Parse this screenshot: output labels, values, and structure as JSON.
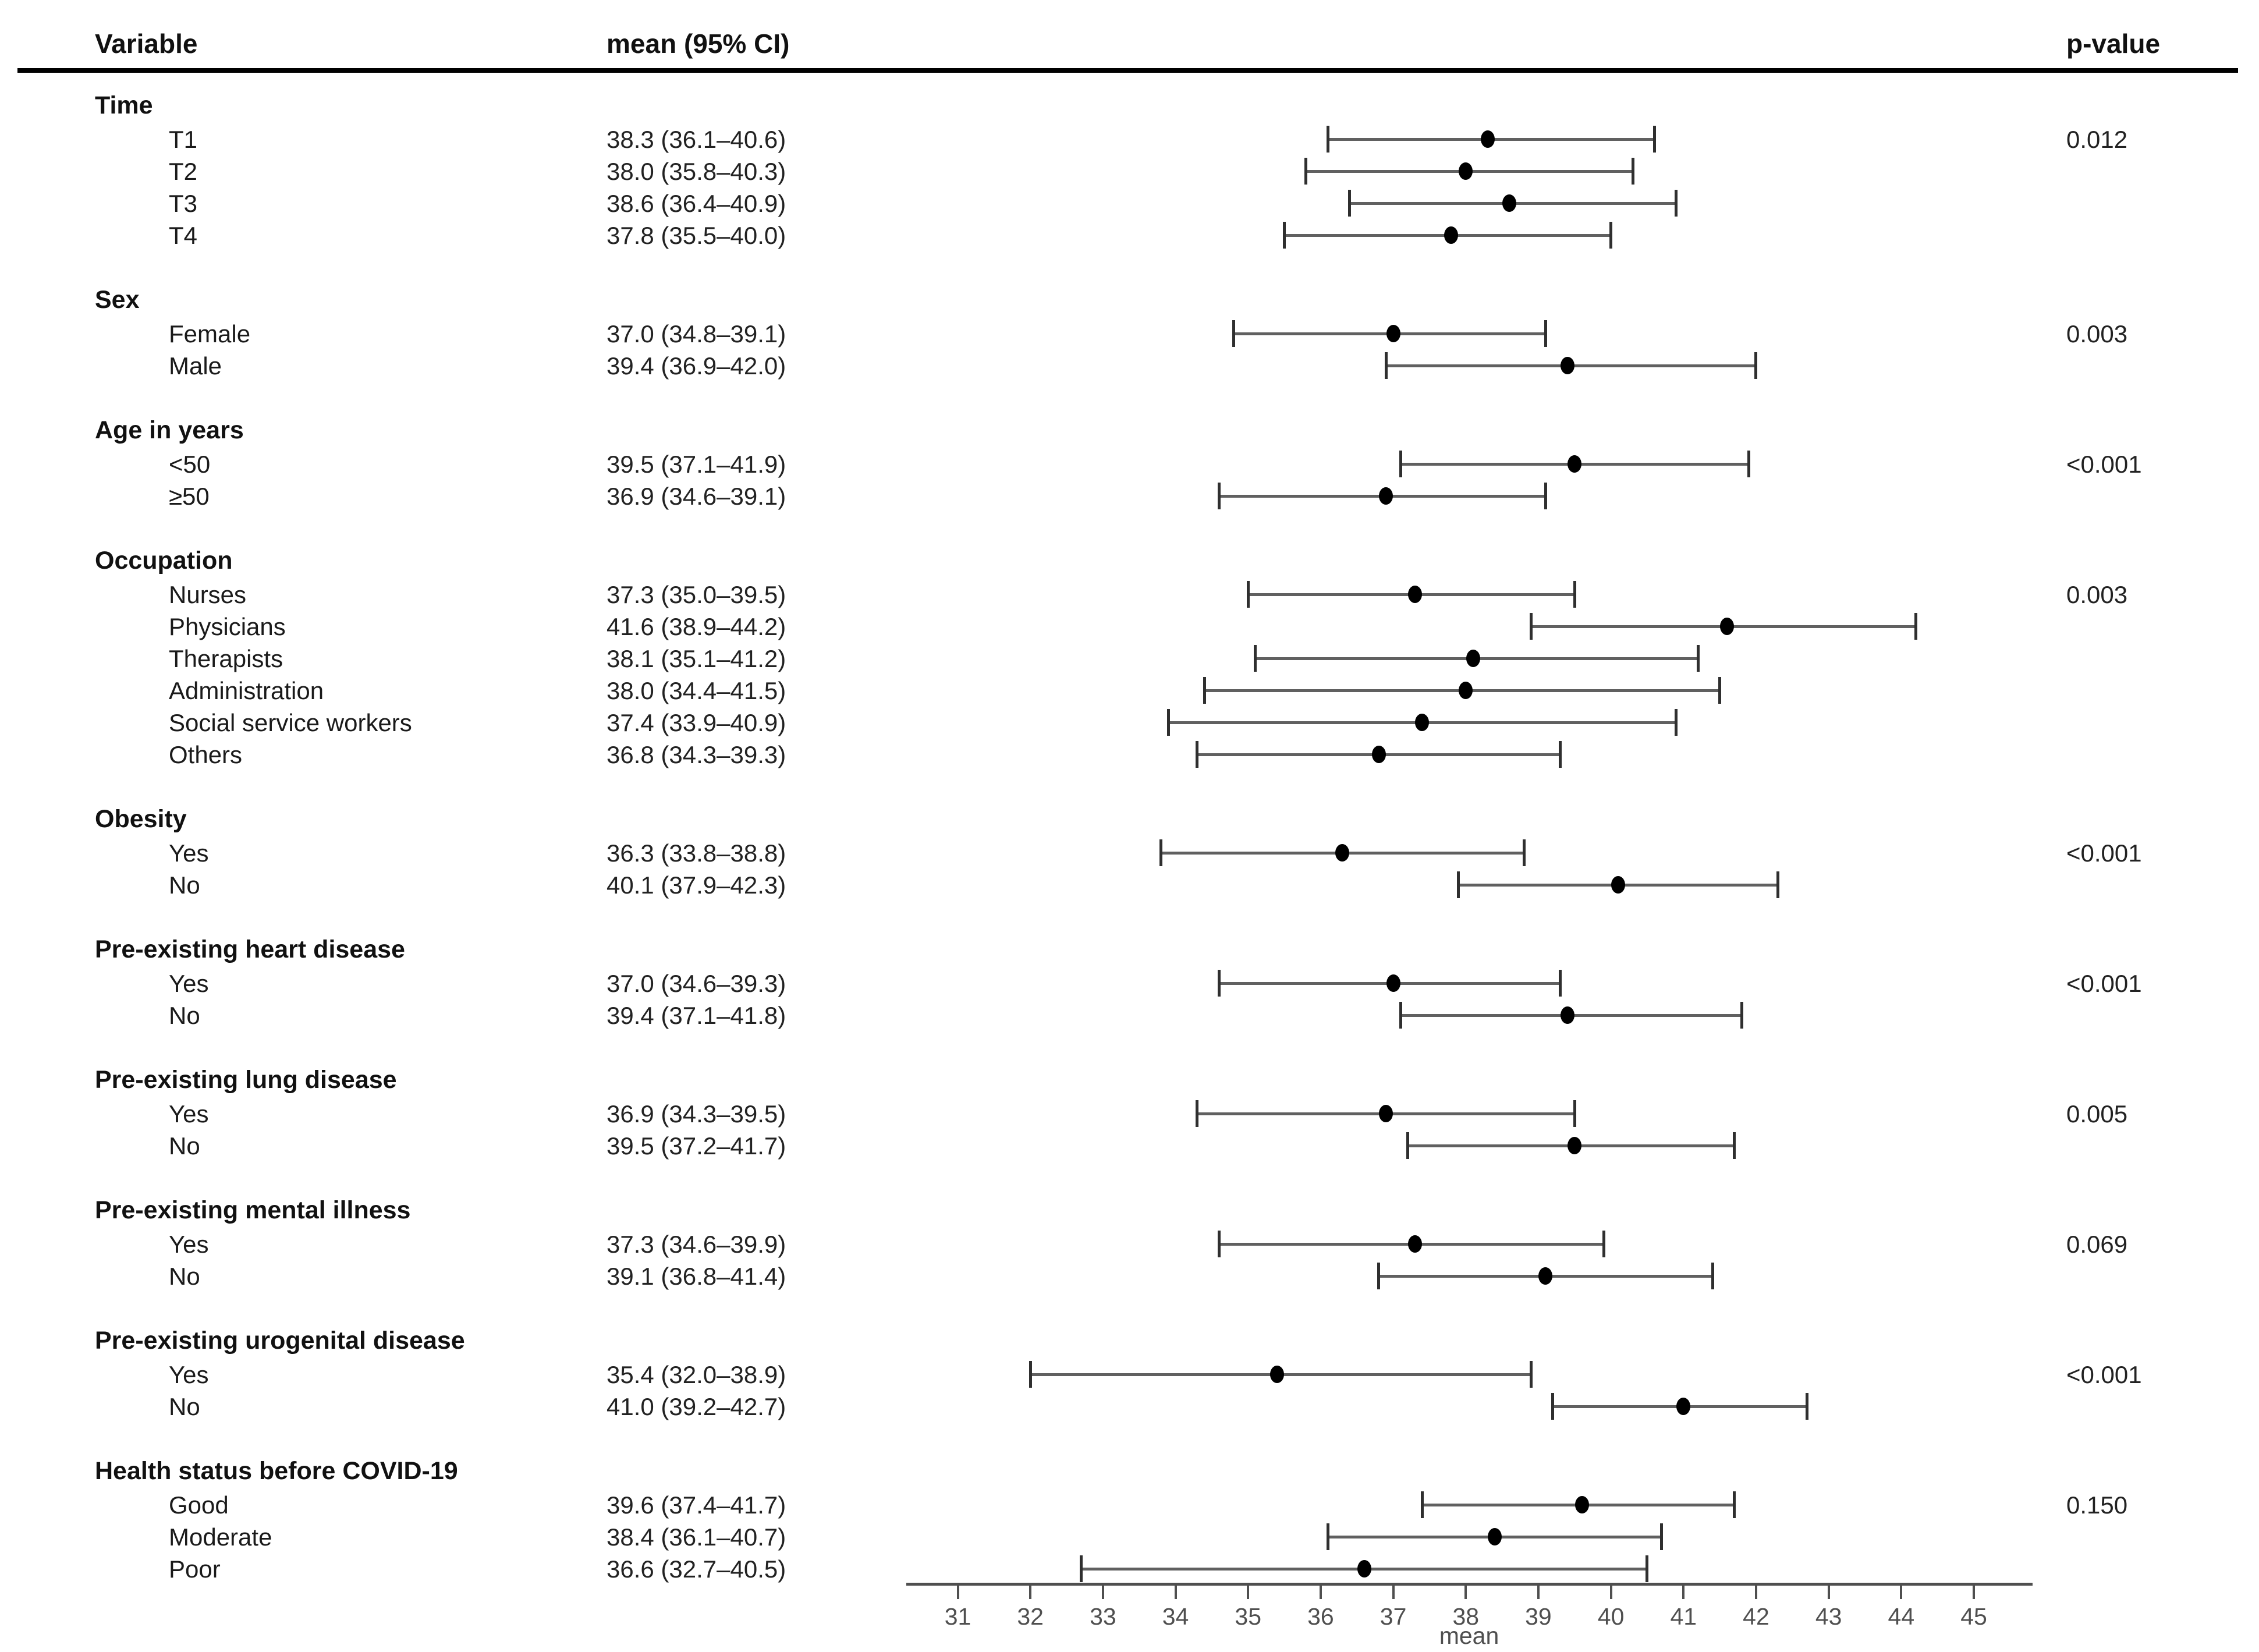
{
  "header": {
    "variable": "Variable",
    "mean_ci": "mean (95% CI)",
    "p_value": "p-value"
  },
  "colors": {
    "text": "#111111",
    "numbers_text": "#222222",
    "ci_line": "#606060",
    "ci_cap": "#2f2f2f",
    "dot": "#000000",
    "header_rule": "#000000",
    "axis": "#4f4f4f",
    "background": "#ffffff"
  },
  "chart_data": {
    "type": "scatter",
    "subtype": "forest-plot-mean-95ci",
    "title": "",
    "xlabel": "mean",
    "xlim": [
      30.29,
      45.81
    ],
    "xticks": [
      31,
      32,
      33,
      34,
      35,
      36,
      37,
      38,
      39,
      40,
      41,
      42,
      43,
      44,
      45
    ],
    "grid": false,
    "columns": [
      "Variable",
      "mean (95% CI)",
      "p-value"
    ],
    "groups": [
      {
        "label": "Time",
        "p_value": "0.012",
        "items": [
          {
            "label": "T1",
            "mean": 38.3,
            "lo": 36.1,
            "hi": 40.6,
            "ci_text": "38.3 (36.1–40.6)"
          },
          {
            "label": "T2",
            "mean": 38.0,
            "lo": 35.8,
            "hi": 40.3,
            "ci_text": "38.0 (35.8–40.3)"
          },
          {
            "label": "T3",
            "mean": 38.6,
            "lo": 36.4,
            "hi": 40.9,
            "ci_text": "38.6 (36.4–40.9)"
          },
          {
            "label": "T4",
            "mean": 37.8,
            "lo": 35.5,
            "hi": 40.0,
            "ci_text": "37.8 (35.5–40.0)"
          }
        ]
      },
      {
        "label": "Sex",
        "p_value": "0.003",
        "items": [
          {
            "label": "Female",
            "mean": 37.0,
            "lo": 34.8,
            "hi": 39.1,
            "ci_text": "37.0 (34.8–39.1)"
          },
          {
            "label": "Male",
            "mean": 39.4,
            "lo": 36.9,
            "hi": 42.0,
            "ci_text": "39.4 (36.9–42.0)"
          }
        ]
      },
      {
        "label": "Age in years",
        "p_value": "<0.001",
        "items": [
          {
            "label": "<50",
            "mean": 39.5,
            "lo": 37.1,
            "hi": 41.9,
            "ci_text": "39.5 (37.1–41.9)"
          },
          {
            "label": "≥50",
            "mean": 36.9,
            "lo": 34.6,
            "hi": 39.1,
            "ci_text": "36.9 (34.6–39.1)"
          }
        ]
      },
      {
        "label": "Occupation",
        "p_value": "0.003",
        "items": [
          {
            "label": "Nurses",
            "mean": 37.3,
            "lo": 35.0,
            "hi": 39.5,
            "ci_text": "37.3 (35.0–39.5)"
          },
          {
            "label": "Physicians",
            "mean": 41.6,
            "lo": 38.9,
            "hi": 44.2,
            "ci_text": "41.6 (38.9–44.2)"
          },
          {
            "label": "Therapists",
            "mean": 38.1,
            "lo": 35.1,
            "hi": 41.2,
            "ci_text": "38.1 (35.1–41.2)"
          },
          {
            "label": "Administration",
            "mean": 38.0,
            "lo": 34.4,
            "hi": 41.5,
            "ci_text": "38.0 (34.4–41.5)"
          },
          {
            "label": "Social service workers",
            "mean": 37.4,
            "lo": 33.9,
            "hi": 40.9,
            "ci_text": "37.4 (33.9–40.9)"
          },
          {
            "label": "Others",
            "mean": 36.8,
            "lo": 34.3,
            "hi": 39.3,
            "ci_text": "36.8 (34.3–39.3)"
          }
        ]
      },
      {
        "label": "Obesity",
        "p_value": "<0.001",
        "items": [
          {
            "label": "Yes",
            "mean": 36.3,
            "lo": 33.8,
            "hi": 38.8,
            "ci_text": "36.3 (33.8–38.8)"
          },
          {
            "label": "No",
            "mean": 40.1,
            "lo": 37.9,
            "hi": 42.3,
            "ci_text": "40.1 (37.9–42.3)"
          }
        ]
      },
      {
        "label": "Pre-existing heart disease",
        "p_value": "<0.001",
        "items": [
          {
            "label": "Yes",
            "mean": 37.0,
            "lo": 34.6,
            "hi": 39.3,
            "ci_text": "37.0 (34.6–39.3)"
          },
          {
            "label": "No",
            "mean": 39.4,
            "lo": 37.1,
            "hi": 41.8,
            "ci_text": "39.4 (37.1–41.8)"
          }
        ]
      },
      {
        "label": "Pre-existing lung disease",
        "p_value": "0.005",
        "items": [
          {
            "label": "Yes",
            "mean": 36.9,
            "lo": 34.3,
            "hi": 39.5,
            "ci_text": "36.9 (34.3–39.5)"
          },
          {
            "label": "No",
            "mean": 39.5,
            "lo": 37.2,
            "hi": 41.7,
            "ci_text": "39.5 (37.2–41.7)"
          }
        ]
      },
      {
        "label": "Pre-existing mental illness",
        "p_value": "0.069",
        "items": [
          {
            "label": "Yes",
            "mean": 37.3,
            "lo": 34.6,
            "hi": 39.9,
            "ci_text": "37.3 (34.6–39.9)"
          },
          {
            "label": "No",
            "mean": 39.1,
            "lo": 36.8,
            "hi": 41.4,
            "ci_text": "39.1 (36.8–41.4)"
          }
        ]
      },
      {
        "label": "Pre-existing urogenital disease",
        "p_value": "<0.001",
        "items": [
          {
            "label": "Yes",
            "mean": 35.4,
            "lo": 32.0,
            "hi": 38.9,
            "ci_text": "35.4 (32.0–38.9)"
          },
          {
            "label": "No",
            "mean": 41.0,
            "lo": 39.2,
            "hi": 42.7,
            "ci_text": "41.0 (39.2–42.7)"
          }
        ]
      },
      {
        "label": "Health status before COVID-19",
        "p_value": "0.150",
        "items": [
          {
            "label": "Good",
            "mean": 39.6,
            "lo": 37.4,
            "hi": 41.7,
            "ci_text": "39.6 (37.4–41.7)"
          },
          {
            "label": "Moderate",
            "mean": 38.4,
            "lo": 36.1,
            "hi": 40.7,
            "ci_text": "38.4 (36.1–40.7)"
          },
          {
            "label": "Poor",
            "mean": 36.6,
            "lo": 32.7,
            "hi": 40.5,
            "ci_text": "36.6 (32.7–40.5)"
          }
        ]
      }
    ]
  },
  "axis": {
    "label": "mean"
  }
}
